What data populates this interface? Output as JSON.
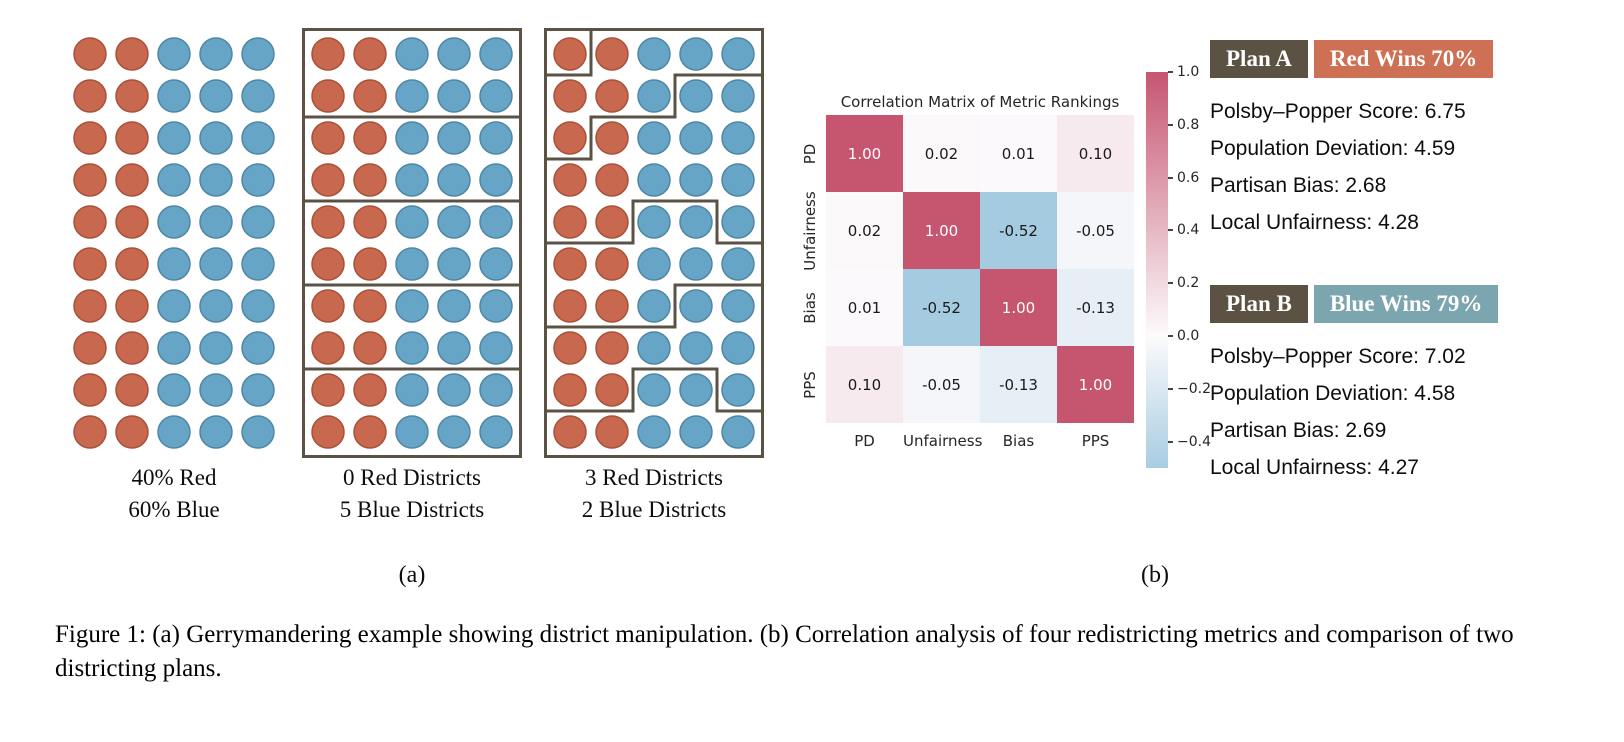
{
  "colors": {
    "red_dot": "#c8694f",
    "red_dot_edge": "#a85138",
    "blue_dot": "#67a5c6",
    "blue_dot_edge": "#4f86a5",
    "district_border": "#5a5245",
    "heat_positive": "#c65570",
    "heat_negative": "#a0c8df",
    "plan_badge_bg": "#5b5244",
    "red_wins_bg": "#cd7054",
    "blue_wins_bg": "#7ba6b0"
  },
  "panel_a": {
    "grids": [
      {
        "id": "population",
        "rows": 10,
        "cols": 5,
        "row_pattern": [
          "red",
          "red",
          "blue",
          "blue",
          "blue"
        ],
        "borders": "none",
        "labels": [
          "40% Red",
          "60% Blue"
        ]
      },
      {
        "id": "uniform-districts",
        "rows": 10,
        "cols": 5,
        "row_pattern": [
          "red",
          "red",
          "blue",
          "blue",
          "blue"
        ],
        "borders": "horizontal",
        "labels": [
          "0 Red Districts",
          "5 Blue Districts"
        ]
      },
      {
        "id": "gerrymandered-districts",
        "rows": 10,
        "cols": 5,
        "row_pattern": [
          "red",
          "red",
          "blue",
          "blue",
          "blue"
        ],
        "borders": "gerrymander",
        "labels": [
          "3 Red Districts",
          "2 Blue Districts"
        ]
      }
    ],
    "caption": "(a)"
  },
  "chart_data": {
    "type": "heatmap",
    "title": "Correlation Matrix of Metric Rankings",
    "categories": [
      "PD",
      "Unfairness",
      "Bias",
      "PPS"
    ],
    "matrix": [
      [
        1.0,
        0.02,
        0.01,
        0.1
      ],
      [
        0.02,
        1.0,
        -0.52,
        -0.05
      ],
      [
        0.01,
        -0.52,
        1.0,
        -0.13
      ],
      [
        0.1,
        -0.05,
        -0.13,
        1.0
      ]
    ],
    "colorbar_ticks": [
      1.0,
      0.8,
      0.6,
      0.4,
      0.2,
      0.0,
      -0.2,
      -0.4
    ],
    "colorbar_range": [
      -0.5,
      1.0
    ],
    "legend_position": "right",
    "grid": false
  },
  "panel_b": {
    "caption": "(b)"
  },
  "plans": [
    {
      "name": "Plan A",
      "result": "Red Wins 70%",
      "result_color": "#cd7054",
      "metrics": [
        "Polsby–Popper Score: 6.75",
        "Population Deviation: 4.59",
        "Partisan Bias: 2.68",
        "Local Unfairness: 4.28"
      ]
    },
    {
      "name": "Plan B",
      "result": "Blue Wins 79%",
      "result_color": "#7ba6b0",
      "metrics": [
        "Polsby–Popper Score: 7.02",
        "Population Deviation: 4.58",
        "Partisan Bias: 2.69",
        "Local Unfairness: 4.27"
      ]
    }
  ],
  "figure_caption": "Figure 1: (a) Gerrymandering example showing district manipulation. (b) Correlation analysis of four redistricting metrics and comparison of two districting plans."
}
